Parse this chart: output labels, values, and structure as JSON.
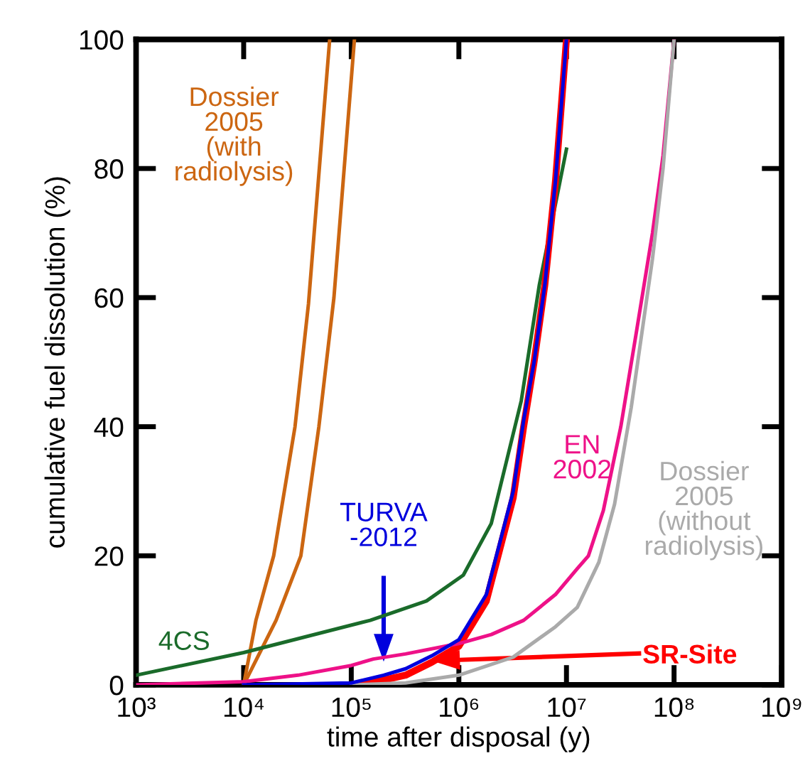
{
  "chart_data": {
    "type": "line",
    "xlabel": "time after disposal (y)",
    "ylabel": "cumulative fuel dissolution (%)",
    "log": "x",
    "xlim": [
      1000,
      1000000000
    ],
    "ylim": [
      0,
      100
    ],
    "xticks": [
      {
        "value": 1000,
        "label": "10³"
      },
      {
        "value": 10000,
        "label": "10⁴"
      },
      {
        "value": 100000,
        "label": "10⁵"
      },
      {
        "value": 1000000,
        "label": "10⁶"
      },
      {
        "value": 10000000,
        "label": "10⁷"
      },
      {
        "value": 100000000,
        "label": "10⁸"
      },
      {
        "value": 1000000000,
        "label": "10⁹"
      }
    ],
    "yticks": [
      0,
      20,
      40,
      60,
      80,
      100
    ],
    "series": [
      {
        "name": "Dossier\n2005\n(with\nradiolysis)",
        "color": "#cc6611",
        "x": [
          10000,
          13000,
          19000,
          30000,
          40000,
          63000
        ],
        "values": [
          0,
          10,
          20,
          40,
          59,
          100
        ]
      },
      {
        "color": "#cc6611",
        "x": [
          10000,
          20000,
          34000,
          50000,
          69000,
          107000
        ],
        "values": [
          0,
          10,
          20,
          40,
          60,
          100
        ]
      },
      {
        "name": "4CS",
        "color": "#1a6b2a",
        "x": [
          1000,
          10000,
          150000,
          500000,
          1100000,
          2000000,
          3800000,
          5600000,
          10000000
        ],
        "values": [
          1.5,
          5,
          10,
          13,
          17,
          25,
          44,
          62,
          83
        ]
      },
      {
        "name": "TURVA\n-2012",
        "color": "#0000dd",
        "x": [
          10000,
          100000,
          200000,
          320000,
          560000,
          1000000,
          1800000,
          3200000,
          4000000,
          5000000,
          6300000,
          7900000,
          10000000
        ],
        "values": [
          0,
          0.3,
          1.5,
          2.5,
          4.5,
          7,
          14,
          30,
          41,
          50,
          62,
          78,
          100
        ]
      },
      {
        "name": "SR-Site",
        "color": "#ff0000",
        "x": [
          126000,
          320000,
          560000,
          1000000,
          1800000,
          3200000,
          4000000,
          5000000,
          6300000,
          7900000,
          10000000
        ],
        "values": [
          0,
          1.5,
          3.5,
          6,
          13,
          29,
          40,
          50,
          62,
          78,
          100
        ]
      },
      {
        "name": "EN\n2002",
        "color": "#ee1188",
        "x": [
          1000,
          10000,
          32000,
          100000,
          160000,
          320000,
          1000000,
          2000000,
          4000000,
          7900000,
          12600000,
          16000000,
          22000000,
          32000000,
          45000000,
          63000000,
          79000000,
          100000000
        ],
        "values": [
          0,
          0.5,
          1.5,
          3,
          4,
          4.8,
          6.4,
          7.8,
          10,
          14,
          18,
          20,
          27,
          40,
          55,
          70,
          82,
          100
        ]
      },
      {
        "name": "Dossier\n2005\n(without\nradiolysis)",
        "color": "#aaaaaa",
        "x": [
          100000,
          320000,
          1000000,
          3200000,
          7900000,
          12600000,
          20000000,
          28000000,
          40000000,
          63000000,
          79000000,
          100000000
        ],
        "values": [
          0,
          0.3,
          1.5,
          4.3,
          9,
          12,
          19,
          28,
          43,
          66,
          80,
          100
        ]
      }
    ]
  }
}
